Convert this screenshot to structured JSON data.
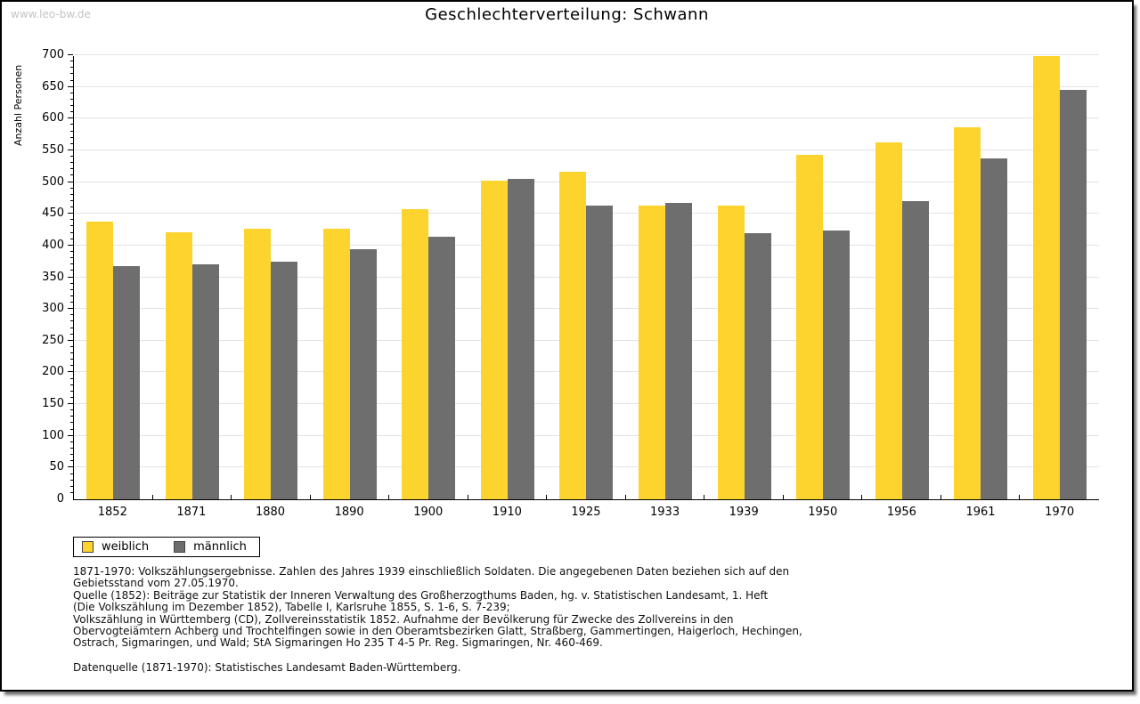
{
  "watermark": "www.leo-bw.de",
  "title": "Geschlechterverteilung: Schwann",
  "chart_data": {
    "type": "bar",
    "title": "Geschlechterverteilung: Schwann",
    "xlabel": "",
    "ylabel": "Anzahl Personen",
    "ylim": [
      0,
      700
    ],
    "y_major_step": 50,
    "y_minor_step": 10,
    "grid": true,
    "legend_position": "bottom-left",
    "categories": [
      "1852",
      "1871",
      "1880",
      "1890",
      "1900",
      "1910",
      "1925",
      "1933",
      "1939",
      "1950",
      "1956",
      "1961",
      "1970"
    ],
    "series": [
      {
        "name": "weiblich",
        "color": "#FCD42D",
        "values": [
          437,
          421,
          427,
          427,
          457,
          502,
          516,
          463,
          463,
          543,
          562,
          586,
          698
        ]
      },
      {
        "name": "männlich",
        "color": "#6E6E6E",
        "values": [
          368,
          371,
          375,
          394,
          414,
          505,
          463,
          467,
          420,
          423,
          470,
          537,
          646
        ]
      }
    ]
  },
  "colors": {
    "gridline": "#e3e3e3",
    "axis": "#000000",
    "watermark": "#c4c4c4"
  },
  "footnotes": {
    "lines": [
      "1871-1970: Volkszählungsergebnisse. Zahlen des Jahres 1939 einschließlich Soldaten. Die angegebenen Daten beziehen sich auf den",
      "Gebietsstand vom 27.05.1970.",
      "Quelle (1852): Beiträge zur Statistik der Inneren Verwaltung des Großherzogthums Baden, hg. v. Statistischen Landesamt, 1. Heft",
      "(Die Volkszählung im Dezember 1852), Tabelle I, Karlsruhe 1855, S. 1-6, S. 7-239;",
      "Volkszählung in Württemberg (CD), Zollvereinsstatistik 1852. Aufnahme der Bevölkerung für Zwecke des Zollvereins in den",
      "Obervogteiämtern Achberg und Trochtelfingen sowie in den Oberamtsbezirken Glatt, Straßberg, Gammertingen, Haigerloch, Hechingen,",
      "Ostrach, Sigmaringen, und Wald; StA Sigmaringen Ho 235 T 4-5 Pr. Reg. Sigmaringen, Nr. 460-469."
    ],
    "datasource": "Datenquelle (1871-1970): Statistisches Landesamt Baden-Württemberg."
  }
}
